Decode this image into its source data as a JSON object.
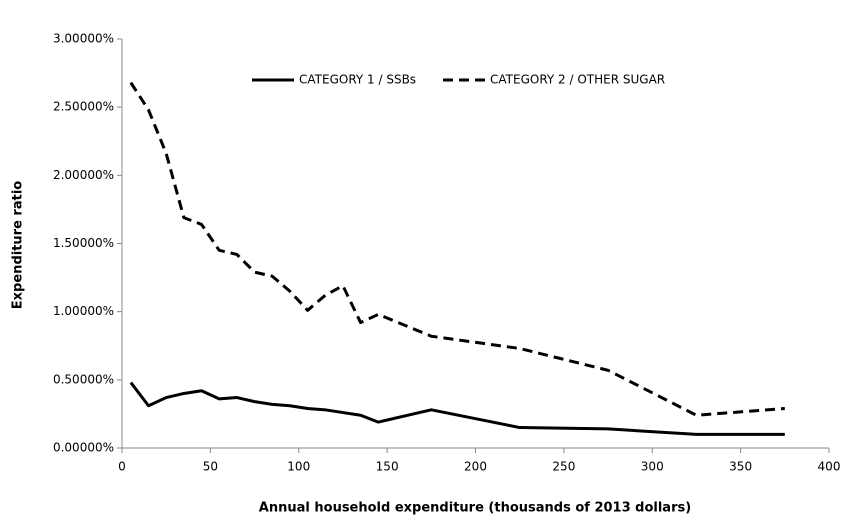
{
  "chart_data": {
    "type": "line",
    "xlabel": "Annual household expenditure (thousands of 2013 dollars)",
    "ylabel": "Expenditure ratio",
    "x": [
      5,
      15,
      25,
      35,
      45,
      55,
      65,
      75,
      85,
      95,
      105,
      115,
      125,
      135,
      145,
      175,
      225,
      275,
      325,
      375
    ],
    "series": [
      {
        "name": "CATEGORY 1 / SSBs",
        "color": "#000000",
        "dash": false,
        "values": [
          0.48,
          0.31,
          0.37,
          0.4,
          0.42,
          0.36,
          0.37,
          0.34,
          0.32,
          0.31,
          0.29,
          0.28,
          0.26,
          0.24,
          0.19,
          0.28,
          0.15,
          0.14,
          0.1,
          0.1
        ]
      },
      {
        "name": "CATEGORY 2 / OTHER SUGAR",
        "color": "#000000",
        "dash": true,
        "values": [
          2.68,
          2.48,
          2.16,
          1.69,
          1.64,
          1.45,
          1.42,
          1.29,
          1.26,
          1.15,
          1.01,
          1.12,
          1.19,
          0.92,
          0.98,
          0.82,
          0.73,
          0.57,
          0.24,
          0.29
        ]
      }
    ],
    "xlim": [
      0,
      400
    ],
    "xticks": [
      0,
      50,
      100,
      150,
      200,
      250,
      300,
      350,
      400
    ],
    "ylim": [
      0,
      3
    ],
    "yticks": [
      {
        "value": 0,
        "label": "0.00000%"
      },
      {
        "value": 0.5,
        "label": "0.50000%"
      },
      {
        "value": 1,
        "label": "1.00000%"
      },
      {
        "value": 1.5,
        "label": "1.50000%"
      },
      {
        "value": 2,
        "label": "2.00000%"
      },
      {
        "value": 2.5,
        "label": "2.50000%"
      },
      {
        "value": 3,
        "label": "3.00000%"
      }
    ],
    "grid": false
  }
}
